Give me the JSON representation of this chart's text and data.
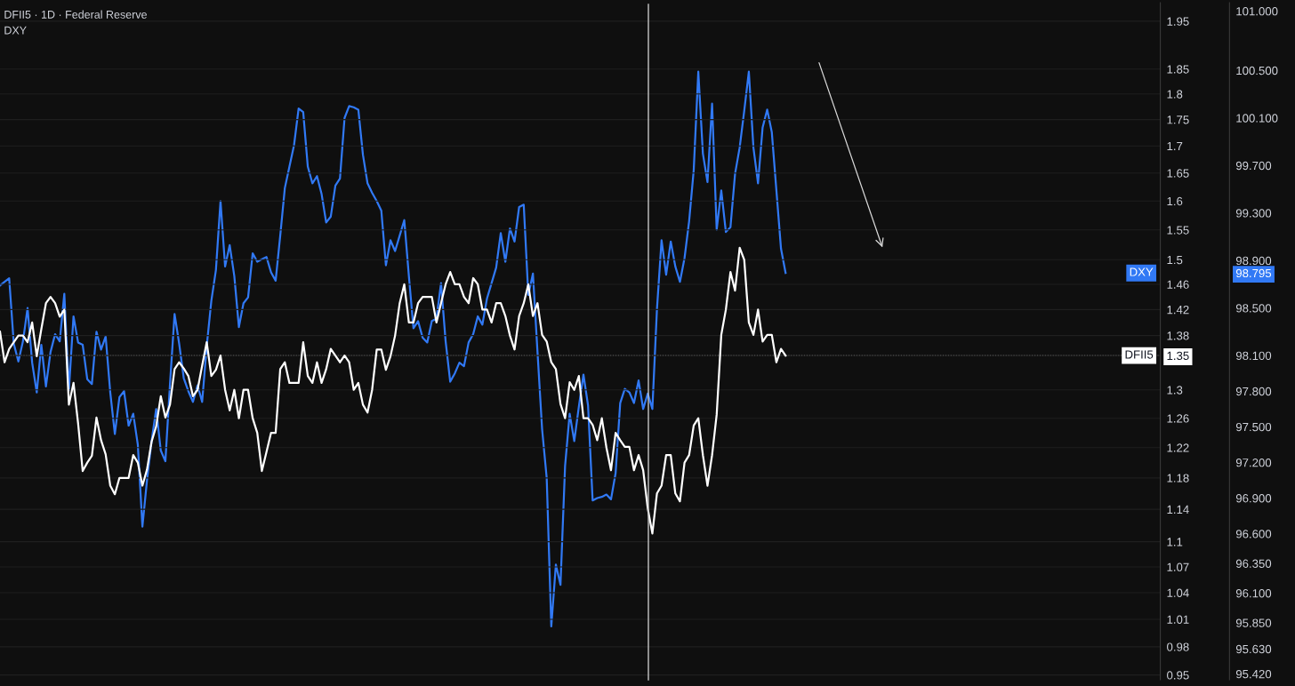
{
  "chart_data": {
    "type": "line",
    "title": "DFII5 · 1D · Federal Reserve",
    "subtitle": "DXY",
    "categories": [
      null,
      null,
      null,
      null,
      null,
      null,
      null,
      null,
      null,
      null,
      null,
      null,
      null,
      null,
      null,
      null,
      null,
      null,
      null,
      null,
      null,
      null,
      null,
      null,
      null,
      null,
      null,
      null,
      null,
      null,
      null,
      null,
      null,
      null,
      null,
      null,
      null,
      null,
      null,
      null,
      null,
      null,
      null,
      null,
      null,
      null,
      null,
      null,
      null,
      null,
      null,
      null,
      null,
      null,
      null,
      null,
      null,
      null,
      null,
      null,
      null,
      null,
      null,
      null,
      null,
      null,
      null,
      null,
      null,
      null,
      null,
      null,
      null,
      null,
      null,
      null,
      null,
      null,
      null,
      null,
      null,
      null,
      null,
      null,
      null,
      null,
      null,
      null,
      null,
      null,
      null,
      null,
      null,
      null,
      null,
      null,
      null,
      null,
      null,
      null,
      null,
      null,
      null,
      null,
      null,
      null,
      null,
      null,
      null,
      null,
      null,
      null,
      null,
      null,
      null,
      null,
      null,
      null,
      null,
      null,
      null,
      null,
      null,
      null,
      null,
      null,
      null,
      null,
      null,
      null,
      null,
      null,
      null,
      null,
      null,
      null,
      null,
      null,
      null,
      null,
      null,
      null,
      null,
      null,
      null,
      null,
      null,
      null,
      null,
      null,
      null,
      null,
      null,
      null,
      null,
      null,
      null,
      null,
      null,
      null,
      null,
      null,
      null,
      null,
      null,
      null,
      null,
      null,
      null,
      null,
      null,
      null
    ],
    "series": [
      {
        "name": "DXY",
        "color": "#3179f5",
        "axis": "y2",
        "values": [
          98.69,
          98.72,
          98.75,
          98.2,
          98.05,
          98.22,
          98.5,
          98.04,
          97.79,
          98.19,
          97.84,
          98.13,
          98.28,
          98.22,
          98.62,
          97.81,
          98.43,
          98.21,
          98.19,
          97.9,
          97.86,
          98.3,
          98.15,
          98.26,
          97.79,
          97.44,
          97.75,
          97.8,
          97.51,
          97.61,
          97.35,
          96.66,
          97.05,
          97.38,
          97.65,
          97.3,
          97.21,
          97.86,
          98.45,
          98.2,
          97.91,
          97.8,
          97.71,
          97.85,
          97.71,
          98.18,
          98.56,
          98.82,
          99.4,
          98.85,
          99.03,
          98.77,
          98.34,
          98.54,
          98.59,
          98.96,
          98.89,
          98.91,
          98.93,
          98.8,
          98.73,
          99.11,
          99.51,
          99.69,
          99.87,
          100.18,
          100.15,
          99.69,
          99.55,
          99.61,
          99.46,
          99.22,
          99.27,
          99.53,
          99.59,
          100.1,
          100.2,
          100.19,
          100.17,
          99.79,
          99.55,
          99.47,
          99.4,
          99.32,
          98.86,
          99.07,
          98.98,
          99.11,
          99.24,
          98.77,
          98.33,
          98.39,
          98.25,
          98.21,
          98.39,
          98.41,
          98.71,
          98.22,
          97.88,
          97.95,
          98.04,
          98.01,
          98.21,
          98.28,
          98.43,
          98.36,
          98.58,
          98.71,
          98.84,
          99.13,
          98.89,
          99.17,
          99.06,
          99.35,
          99.37,
          98.61,
          98.79,
          98.13,
          97.48,
          97.07,
          95.82,
          96.34,
          96.17,
          97.17,
          97.61,
          97.38,
          97.67,
          97.94,
          97.68,
          96.88,
          96.9,
          96.91,
          96.93,
          96.89,
          97.11,
          97.7,
          97.82,
          97.79,
          97.7,
          97.89,
          97.65,
          97.78,
          97.65,
          98.49,
          99.07,
          98.78,
          99.06,
          98.85,
          98.72,
          98.92,
          99.23,
          99.66,
          100.49,
          99.8,
          99.56,
          100.22,
          99.16,
          99.49,
          99.14,
          99.18,
          99.63,
          99.85,
          100.16,
          100.49,
          99.85,
          99.55,
          100.02,
          100.17,
          99.98,
          99.49,
          99.0,
          98.795
        ]
      },
      {
        "name": "DFII5",
        "color": "#ffffff",
        "axis": "y",
        "values": [
          1.386,
          1.34,
          1.36,
          1.37,
          1.38,
          1.38,
          1.37,
          1.4,
          1.349,
          1.39,
          1.43,
          1.44,
          1.43,
          1.409,
          1.42,
          1.279,
          1.31,
          1.253,
          1.189,
          1.2,
          1.209,
          1.261,
          1.23,
          1.211,
          1.17,
          1.159,
          1.18,
          1.18,
          1.18,
          1.21,
          1.2,
          1.17,
          1.191,
          1.228,
          1.249,
          1.291,
          1.261,
          1.279,
          1.33,
          1.34,
          1.331,
          1.32,
          1.291,
          1.3,
          1.335,
          1.37,
          1.32,
          1.329,
          1.35,
          1.3,
          1.271,
          1.3,
          1.26,
          1.3,
          1.3,
          1.26,
          1.24,
          1.189,
          1.214,
          1.24,
          1.24,
          1.33,
          1.34,
          1.31,
          1.31,
          1.31,
          1.37,
          1.32,
          1.31,
          1.34,
          1.31,
          1.33,
          1.36,
          1.35,
          1.34,
          1.35,
          1.34,
          1.3,
          1.31,
          1.279,
          1.268,
          1.3,
          1.359,
          1.359,
          1.329,
          1.349,
          1.38,
          1.43,
          1.46,
          1.4,
          1.4,
          1.43,
          1.44,
          1.44,
          1.44,
          1.4,
          1.43,
          1.46,
          1.48,
          1.46,
          1.46,
          1.44,
          1.43,
          1.47,
          1.46,
          1.42,
          1.42,
          1.4,
          1.43,
          1.43,
          1.41,
          1.38,
          1.359,
          1.41,
          1.43,
          1.46,
          1.41,
          1.43,
          1.381,
          1.371,
          1.34,
          1.33,
          1.28,
          1.26,
          1.311,
          1.3,
          1.32,
          1.26,
          1.26,
          1.251,
          1.23,
          1.26,
          1.22,
          1.19,
          1.24,
          1.23,
          1.221,
          1.221,
          1.19,
          1.21,
          1.19,
          1.141,
          1.11,
          1.16,
          1.17,
          1.21,
          1.21,
          1.16,
          1.15,
          1.2,
          1.21,
          1.25,
          1.26,
          1.21,
          1.17,
          1.21,
          1.265,
          1.381,
          1.42,
          1.48,
          1.45,
          1.52,
          1.5,
          1.4,
          1.381,
          1.42,
          1.371,
          1.381,
          1.381,
          1.34,
          1.36,
          1.35
        ]
      }
    ],
    "log": "y",
    "ylim": [
      0.945,
      1.99
    ],
    "yticks": [
      0.95,
      0.98,
      1.01,
      1.04,
      1.07,
      1.1,
      1.14,
      1.18,
      1.22,
      1.26,
      1.3,
      1.35,
      1.38,
      1.42,
      1.46,
      1.5,
      1.55,
      1.6,
      1.65,
      1.7,
      1.75,
      1.8,
      1.85,
      1.95
    ],
    "y2lim": [
      95.37,
      101.07
    ],
    "y2ticks": [
      {
        "value": 95.42,
        "label": "95.420"
      },
      {
        "value": 95.63,
        "label": "95.630"
      },
      {
        "value": 95.85,
        "label": "95.850"
      },
      {
        "value": 96.1,
        "label": "96.100"
      },
      {
        "value": 96.35,
        "label": "96.350"
      },
      {
        "value": 96.6,
        "label": "96.600"
      },
      {
        "value": 96.9,
        "label": "96.900"
      },
      {
        "value": 97.2,
        "label": "97.200"
      },
      {
        "value": 97.5,
        "label": "97.500"
      },
      {
        "value": 97.8,
        "label": "97.800"
      },
      {
        "value": 98.1,
        "label": "98.100"
      },
      {
        "value": 98.5,
        "label": "98.500"
      },
      98.795,
      {
        "value": 98.9,
        "label": "98.900"
      },
      {
        "value": 99.3,
        "label": "99.300"
      },
      {
        "value": 99.7,
        "label": "99.700"
      },
      {
        "value": 100.1,
        "label": "100.100"
      },
      {
        "value": 100.5,
        "label": "100.500"
      },
      {
        "value": 101,
        "label": "101.000"
      }
    ],
    "ref_lines": [
      {
        "axis": "y",
        "value": 1.35,
        "color": "#9a9a9a",
        "line_style": "dotted"
      }
    ],
    "grid": "y",
    "legend": "right",
    "marker": "none",
    "line_style": "solid"
  }
}
